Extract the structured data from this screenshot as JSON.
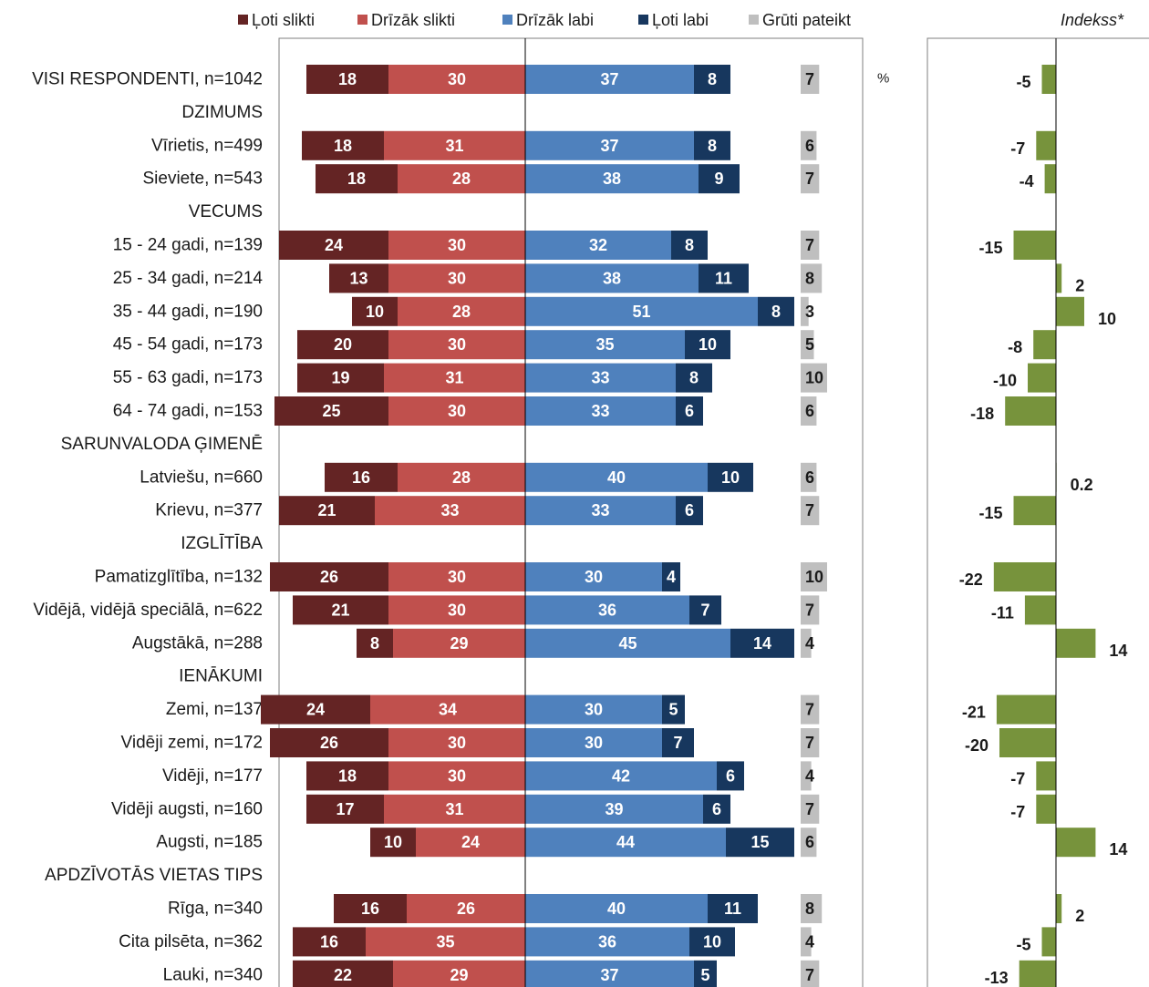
{
  "chart_data": {
    "type": "bar",
    "orientation": "horizontal",
    "stacked": "diverging",
    "legend": {
      "position": "top",
      "items": [
        {
          "name": "Ļoti slikti",
          "color": "#642424"
        },
        {
          "name": "Drīzāk slikti",
          "color": "#c0504d"
        },
        {
          "name": "Drīzāk labi",
          "color": "#4f81bd"
        },
        {
          "name": "Ļoti labi",
          "color": "#17375e"
        },
        {
          "name": "Grūti pateikt",
          "color": "#bfbfbf"
        }
      ]
    },
    "unit_label": "%",
    "index_title": "Indekss*",
    "index_color": "#77933c",
    "rows": [
      {
        "label": "VISI RESPONDENTI, n=1042",
        "header": false,
        "values": [
          18,
          30,
          37,
          8,
          7
        ],
        "index": "-5"
      },
      {
        "label": "DZIMUMS",
        "header": true
      },
      {
        "label": "Vīrietis, n=499",
        "header": false,
        "values": [
          18,
          31,
          37,
          8,
          6
        ],
        "index": "-7"
      },
      {
        "label": "Sieviete, n=543",
        "header": false,
        "values": [
          18,
          28,
          38,
          9,
          7
        ],
        "index": "-4"
      },
      {
        "label": "VECUMS",
        "header": true
      },
      {
        "label": "15 - 24 gadi, n=139",
        "header": false,
        "values": [
          24,
          30,
          32,
          8,
          7
        ],
        "index": "-15"
      },
      {
        "label": "25 - 34 gadi, n=214",
        "header": false,
        "values": [
          13,
          30,
          38,
          11,
          8
        ],
        "index": "2"
      },
      {
        "label": "35 - 44 gadi, n=190",
        "header": false,
        "values": [
          10,
          28,
          51,
          8,
          3
        ],
        "index": "10"
      },
      {
        "label": "45 - 54 gadi, n=173",
        "header": false,
        "values": [
          20,
          30,
          35,
          10,
          5
        ],
        "index": "-8"
      },
      {
        "label": "55 - 63 gadi, n=173",
        "header": false,
        "values": [
          19,
          31,
          33,
          8,
          10
        ],
        "index": "-10"
      },
      {
        "label": "64 - 74 gadi, n=153",
        "header": false,
        "values": [
          25,
          30,
          33,
          6,
          6
        ],
        "index": "-18"
      },
      {
        "label": "SARUNVALODA ĢIMENĒ",
        "header": true
      },
      {
        "label": "Latviešu, n=660",
        "header": false,
        "values": [
          16,
          28,
          40,
          10,
          6
        ],
        "index": "0.2"
      },
      {
        "label": "Krievu, n=377",
        "header": false,
        "values": [
          21,
          33,
          33,
          6,
          7
        ],
        "index": "-15"
      },
      {
        "label": "IZGLĪTĪBA",
        "header": true
      },
      {
        "label": "Pamatizglītība, n=132",
        "header": false,
        "values": [
          26,
          30,
          30,
          4,
          10
        ],
        "index": "-22"
      },
      {
        "label": "Vidējā, vidējā speciālā, n=622",
        "header": false,
        "values": [
          21,
          30,
          36,
          7,
          7
        ],
        "index": "-11"
      },
      {
        "label": "Augstākā, n=288",
        "header": false,
        "values": [
          8,
          29,
          45,
          14,
          4
        ],
        "index": "14"
      },
      {
        "label": "IENĀKUMI",
        "header": true
      },
      {
        "label": "Zemi, n=137",
        "header": false,
        "values": [
          24,
          34,
          30,
          5,
          7
        ],
        "index": "-21"
      },
      {
        "label": "Vidēji zemi, n=172",
        "header": false,
        "values": [
          26,
          30,
          30,
          7,
          7
        ],
        "index": "-20"
      },
      {
        "label": "Vidēji, n=177",
        "header": false,
        "values": [
          18,
          30,
          42,
          6,
          4
        ],
        "index": "-7"
      },
      {
        "label": "Vidēji augsti, n=160",
        "header": false,
        "values": [
          17,
          31,
          39,
          6,
          7
        ],
        "index": "-7"
      },
      {
        "label": "Augsti, n=185",
        "header": false,
        "values": [
          10,
          24,
          44,
          15,
          6
        ],
        "index": "14"
      },
      {
        "label": "APDZĪVOTĀS VIETAS TIPS",
        "header": true
      },
      {
        "label": "Rīga, n=340",
        "header": false,
        "values": [
          16,
          26,
          40,
          11,
          8
        ],
        "index": "2"
      },
      {
        "label": "Cita pilsēta, n=362",
        "header": false,
        "values": [
          16,
          35,
          36,
          10,
          4
        ],
        "index": "-5"
      },
      {
        "label": "Lauki, n=340",
        "header": false,
        "values": [
          22,
          29,
          37,
          5,
          7
        ],
        "index": "-13"
      }
    ]
  }
}
